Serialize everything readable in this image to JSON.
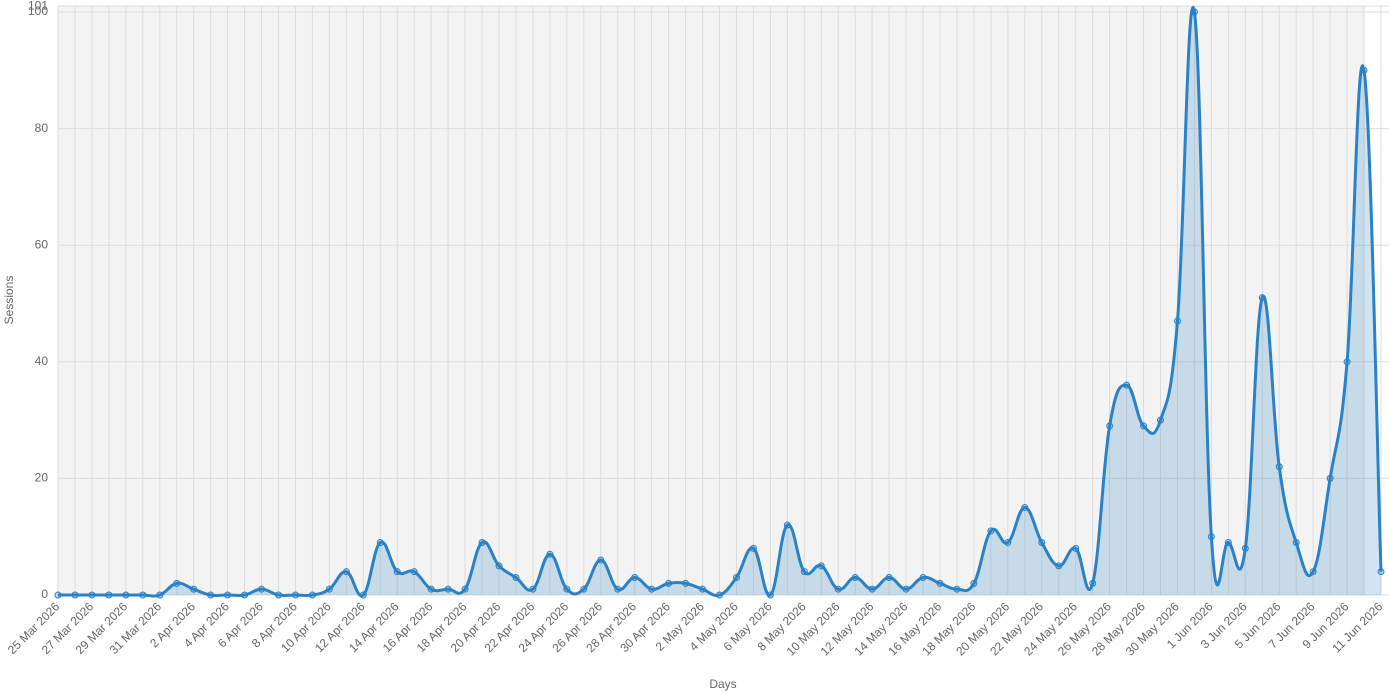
{
  "chart_data": {
    "type": "line",
    "x_label": "Days",
    "y_label": "Sessions",
    "categories": [
      "25 Mar 2026",
      null,
      "27 Mar 2026",
      null,
      "29 Mar 2026",
      null,
      "31 Mar 2026",
      null,
      "2 Apr 2026",
      null,
      "4 Apr 2026",
      null,
      "6 Apr 2026",
      null,
      "8 Apr 2026",
      null,
      "10 Apr 2026",
      null,
      "12 Apr 2026",
      null,
      "14 Apr 2026",
      null,
      "16 Apr 2026",
      null,
      "18 Apr 2026",
      null,
      "20 Apr 2026",
      null,
      "22 Apr 2026",
      null,
      "24 Apr 2026",
      null,
      "26 Apr 2026",
      null,
      "28 Apr 2026",
      null,
      "30 Apr 2026",
      null,
      "2 May 2026",
      null,
      "4 May 2026",
      null,
      "6 May 2026",
      null,
      "8 May 2026",
      null,
      "10 May 2026",
      null,
      "12 May 2026",
      null,
      "14 May 2026",
      null,
      "16 May 2026",
      null,
      "18 May 2026",
      null,
      "20 May 2026",
      null,
      "22 May 2026",
      null,
      "24 May 2026",
      null,
      "26 May 2026",
      null,
      "28 May 2026",
      null,
      "30 May 2026",
      null,
      "1 Jun 2026",
      null,
      "3 Jun 2026",
      null,
      "5 Jun 2026",
      null,
      "7 Jun 2026",
      null,
      "9 Jun 2026",
      null,
      "11 Jun 2026"
    ],
    "series": [
      {
        "color": "#2a82c6",
        "values": [
          0,
          0,
          0,
          0,
          0,
          0,
          0,
          2,
          1,
          0,
          0,
          0,
          1,
          0,
          0,
          0,
          1,
          4,
          0,
          9,
          4,
          4,
          1,
          1,
          1,
          9,
          5,
          3,
          1,
          7,
          1,
          1,
          6,
          1,
          3,
          1,
          2,
          2,
          1,
          0,
          3,
          8,
          0,
          12,
          4,
          5,
          1,
          3,
          1,
          3,
          1,
          3,
          2,
          1,
          2,
          11,
          9,
          15,
          9,
          5,
          8,
          2,
          29,
          36,
          29,
          30,
          47,
          100,
          10,
          9,
          8,
          51,
          22,
          9,
          4,
          20,
          40,
          90,
          4
        ]
      }
    ],
    "ylim": [
      0,
      101
    ],
    "yticks": [
      0,
      20,
      40,
      60,
      80,
      100,
      101
    ],
    "grid": true
  }
}
